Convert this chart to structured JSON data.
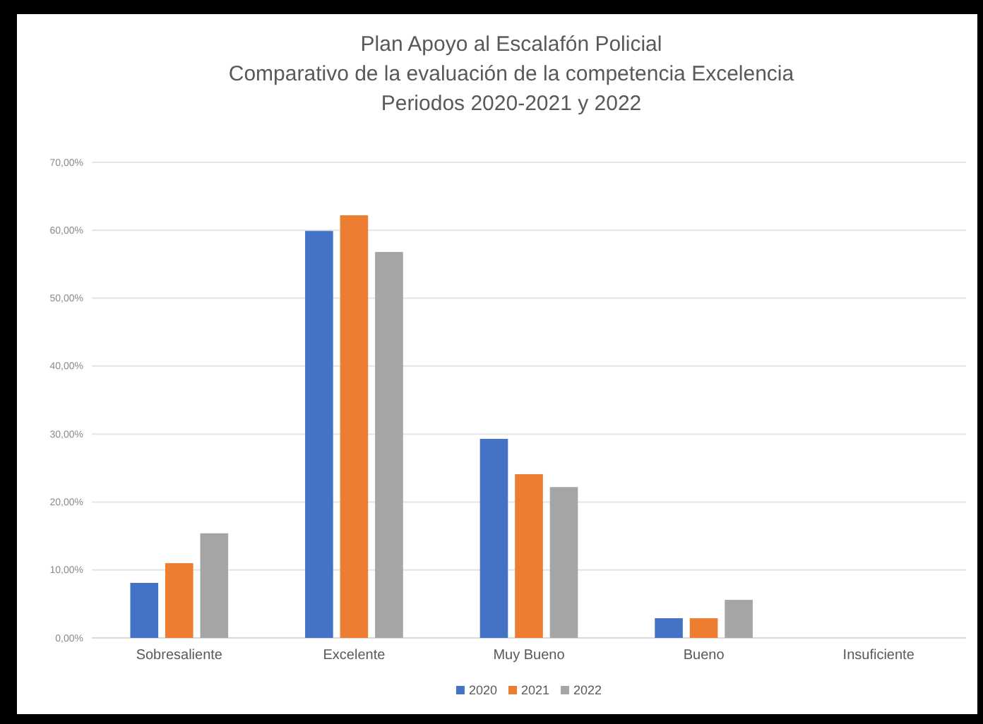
{
  "chart_data": {
    "type": "bar",
    "title": "Plan Apoyo al Escalafón Policial\nComparativo de la evaluación de la competencia Excelencia\nPeriodos 2020-2021 y 2022",
    "categories": [
      "Sobresaliente",
      "Excelente",
      "Muy Bueno",
      "Bueno",
      "Insuficiente"
    ],
    "series": [
      {
        "name": "2020",
        "color": "#4472c4",
        "values": [
          8.1,
          59.9,
          29.3,
          2.9,
          0
        ]
      },
      {
        "name": "2021",
        "color": "#ed7d31",
        "values": [
          11.0,
          62.2,
          24.1,
          2.9,
          0
        ]
      },
      {
        "name": "2022",
        "color": "#a5a5a5",
        "values": [
          15.4,
          56.8,
          22.2,
          5.6,
          0
        ]
      }
    ],
    "ylim": [
      0,
      70
    ],
    "yticks": [
      {
        "value": 0,
        "label": "0,00%"
      },
      {
        "value": 10,
        "label": "10,00%"
      },
      {
        "value": 20,
        "label": "20,00%"
      },
      {
        "value": 30,
        "label": "30,00%"
      },
      {
        "value": 40,
        "label": "40,00%"
      },
      {
        "value": 50,
        "label": "50,00%"
      },
      {
        "value": 60,
        "label": "60,00%"
      },
      {
        "value": 70,
        "label": "70,00%"
      }
    ],
    "grid": "y",
    "legend": "bottom"
  }
}
